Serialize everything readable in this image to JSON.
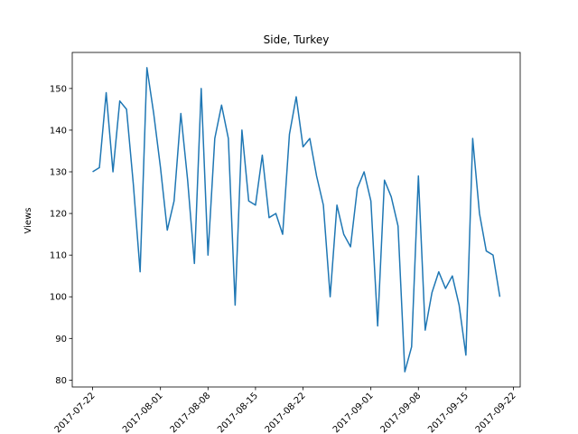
{
  "chart_data": {
    "type": "line",
    "title": "Side, Turkey",
    "ylabel": "Views",
    "x": [
      "2017-07-22",
      "2017-07-23",
      "2017-07-24",
      "2017-07-25",
      "2017-07-26",
      "2017-07-27",
      "2017-07-28",
      "2017-07-29",
      "2017-07-30",
      "2017-07-31",
      "2017-08-01",
      "2017-08-02",
      "2017-08-03",
      "2017-08-04",
      "2017-08-05",
      "2017-08-06",
      "2017-08-07",
      "2017-08-08",
      "2017-08-09",
      "2017-08-10",
      "2017-08-11",
      "2017-08-12",
      "2017-08-13",
      "2017-08-14",
      "2017-08-15",
      "2017-08-16",
      "2017-08-17",
      "2017-08-18",
      "2017-08-19",
      "2017-08-20",
      "2017-08-21",
      "2017-08-22",
      "2017-08-23",
      "2017-08-24",
      "2017-08-25",
      "2017-08-26",
      "2017-08-27",
      "2017-08-28",
      "2017-08-29",
      "2017-08-30",
      "2017-08-31",
      "2017-09-01",
      "2017-09-02",
      "2017-09-03",
      "2017-09-04",
      "2017-09-05",
      "2017-09-06",
      "2017-09-07",
      "2017-09-08",
      "2017-09-09",
      "2017-09-10",
      "2017-09-11",
      "2017-09-12",
      "2017-09-13",
      "2017-09-14",
      "2017-09-15",
      "2017-09-16",
      "2017-09-17",
      "2017-09-18",
      "2017-09-19",
      "2017-09-20"
    ],
    "series": [
      {
        "name": "Views",
        "color": "#1f77b4",
        "values": [
          130,
          131,
          149,
          130,
          147,
          145,
          127,
          106,
          155,
          144,
          131,
          116,
          123,
          144,
          128,
          108,
          150,
          110,
          138,
          146,
          138,
          98,
          140,
          123,
          122,
          134,
          119,
          120,
          115,
          139,
          148,
          136,
          138,
          129,
          122,
          100,
          122,
          115,
          112,
          126,
          130,
          123,
          93,
          128,
          124,
          117,
          82,
          88,
          129,
          92,
          101,
          106,
          102,
          105,
          98,
          86,
          138,
          120,
          111,
          110,
          100
        ]
      }
    ],
    "xlim": [
      "2017-07-19",
      "2017-09-23"
    ],
    "xticks": [
      "2017-07-22",
      "2017-08-01",
      "2017-08-08",
      "2017-08-15",
      "2017-08-22",
      "2017-09-01",
      "2017-09-08",
      "2017-09-15",
      "2017-09-22"
    ],
    "ylim": [
      78.35,
      158.65
    ],
    "yticks": [
      80,
      90,
      100,
      110,
      120,
      130,
      140,
      150
    ]
  }
}
